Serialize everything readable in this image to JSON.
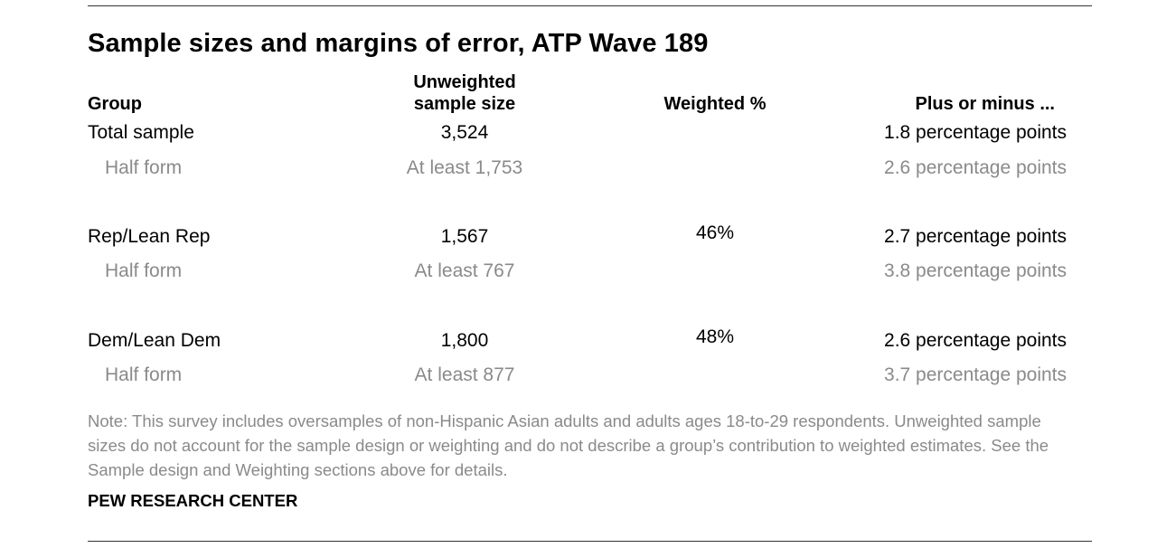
{
  "title": "Sample sizes and margins of error, ATP Wave 189",
  "headers": {
    "group": "Group",
    "unweighted_line1": "Unweighted",
    "unweighted_line2": "sample size",
    "weighted": "Weighted %",
    "moe": "Plus or minus ..."
  },
  "rows": [
    {
      "group": "Total sample",
      "unweighted": "3,524",
      "weighted": "",
      "moe": "1.8 percentage points"
    },
    {
      "group": "Half form",
      "unweighted": "At least 1,753",
      "weighted": "",
      "moe": "2.6 percentage points"
    },
    {
      "group": "Rep/Lean Rep",
      "unweighted": "1,567",
      "weighted": "46%",
      "moe": "2.7 percentage points"
    },
    {
      "group": "Half form",
      "unweighted": "At least 767",
      "weighted": "",
      "moe": "3.8 percentage points"
    },
    {
      "group": "Dem/Lean Dem",
      "unweighted": "1,800",
      "weighted": "48%",
      "moe": "2.6 percentage points"
    },
    {
      "group": "Half form",
      "unweighted": "At least 877",
      "weighted": "",
      "moe": "3.7 percentage points"
    }
  ],
  "note": "Note: This survey includes oversamples of non-Hispanic Asian adults and adults ages 18-to-29 respondents. Unweighted sample sizes do not account for the sample design or weighting and do not describe a group’s contribution to weighted estimates. See the Sample design and Weighting sections above for details.",
  "source": "PEW RESEARCH CENTER",
  "colors": {
    "text": "#000000",
    "muted": "#8a8a8a",
    "rule": "#333333"
  }
}
